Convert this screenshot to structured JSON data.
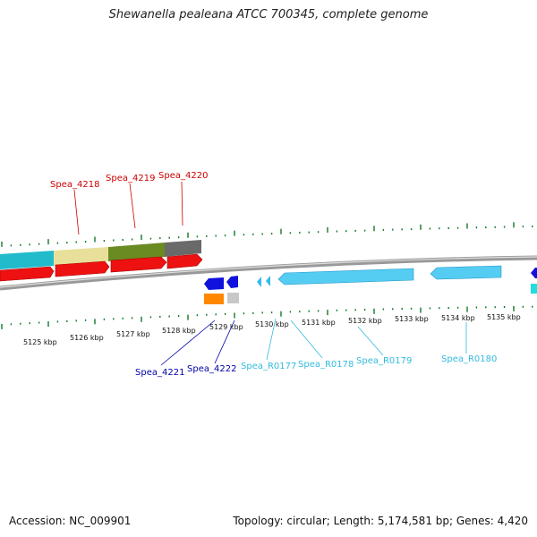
{
  "title": "Shewanella pealeana ATCC 700345, complete genome",
  "accession_text": "Accession: NC_009901",
  "summary_text": "Topology: circular; Length: 5,174,581 bp; Genes: 4,420",
  "colors": {
    "red_gene": "#ee1111",
    "blue_gene": "#1111dd",
    "cyan_gene": "#33bbee",
    "tick_green": "#11772a",
    "backbone": "#888888",
    "label_red": "#cc0000",
    "label_blue": "#0000aa",
    "label_cyan": "#33bbdd"
  },
  "kbp_labels": [
    "5125 kbp",
    "5126 kbp",
    "5127 kbp",
    "5128 kbp",
    "5129 kbp",
    "5130 kbp",
    "5131 kbp",
    "5132 kbp",
    "5133 kbp",
    "5134 kbp",
    "5135 kbp"
  ],
  "gene_labels": {
    "spea_4218": "Spea_4218",
    "spea_4219": "Spea_4219",
    "spea_4220": "Spea_4220",
    "spea_4221": "Spea_4221",
    "spea_4222": "Spea_4222",
    "spea_r0177": "Spea_R0177",
    "spea_r0178": "Spea_R0178",
    "spea_r0179": "Spea_R0179",
    "spea_r0180": "Spea_R0180"
  }
}
